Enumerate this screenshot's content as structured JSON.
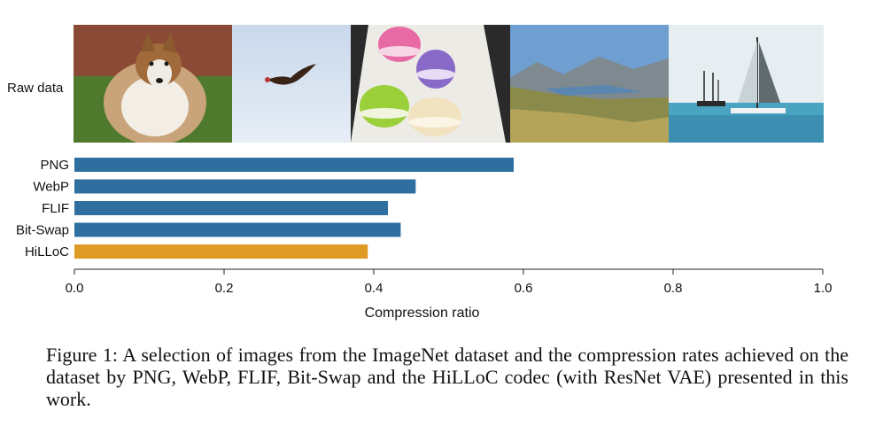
{
  "raw_label": "Raw data",
  "images": [
    {
      "name": "dog-photo",
      "subject": "Shetland sheepdog sitting on a path"
    },
    {
      "name": "bird-photo",
      "subject": "Bird of prey flying against a pale sky"
    },
    {
      "name": "macarons-photo",
      "subject": "Colorful macarons on a plate"
    },
    {
      "name": "mountain-lake-photo",
      "subject": "Mountain valley with a lake"
    },
    {
      "name": "sailboats-photo",
      "subject": "Sailing ships on the sea"
    }
  ],
  "chart_data": {
    "type": "bar",
    "orientation": "horizontal",
    "categories": [
      "PNG",
      "WebP",
      "FLIF",
      "Bit-Swap",
      "HiLLoC"
    ],
    "values": [
      0.587,
      0.456,
      0.419,
      0.436,
      0.392
    ],
    "bar_colors": [
      "#2f6f9f",
      "#2f6f9f",
      "#2f6f9f",
      "#2f6f9f",
      "#e09a26"
    ],
    "xlabel": "Compression ratio",
    "xlim": [
      0.0,
      1.0
    ],
    "xticks": [
      "0.0",
      "0.2",
      "0.4",
      "0.6",
      "0.8",
      "1.0"
    ],
    "grid": false
  },
  "caption": "Figure 1: A selection of images from the ImageNet dataset and the compression rates achieved on the dataset by PNG, WebP, FLIF, Bit-Swap and the HiLLoC codec (with ResNet VAE) presented in this work."
}
